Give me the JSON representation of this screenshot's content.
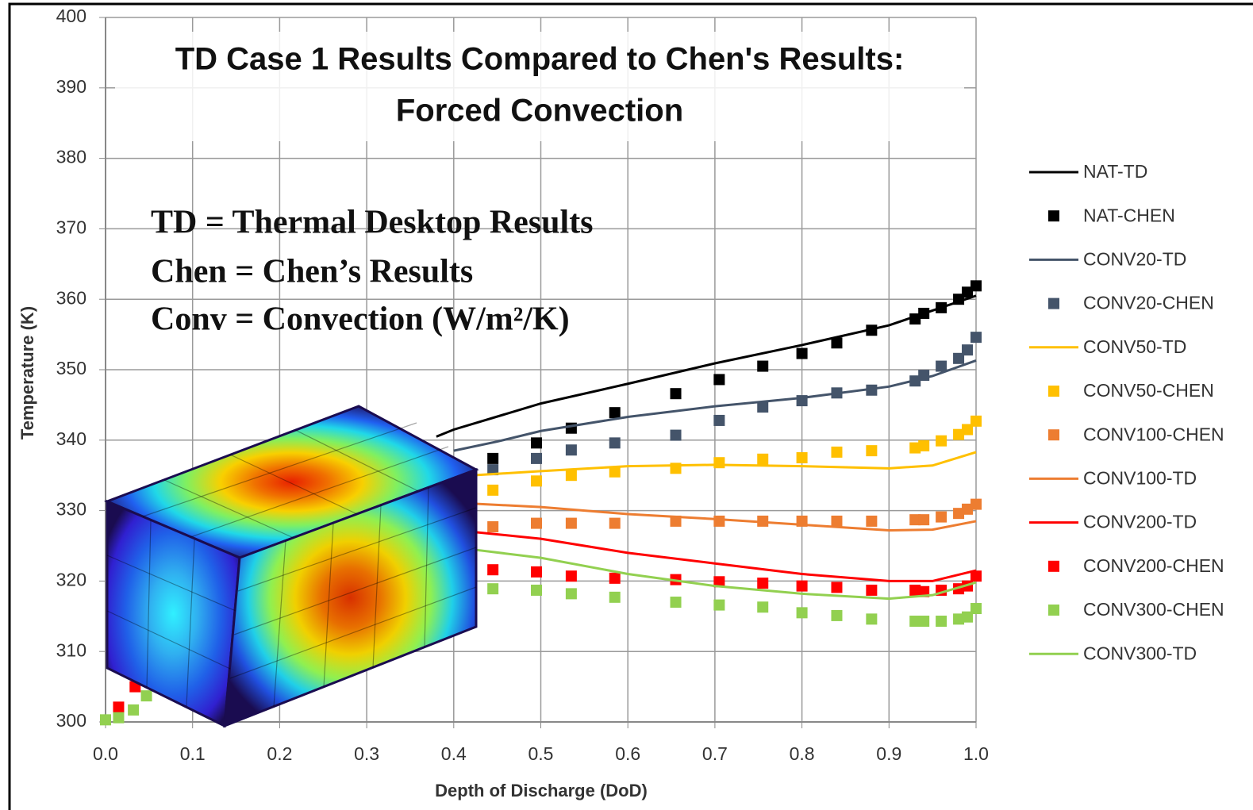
{
  "chart_data": {
    "type": "line",
    "title": [
      "TD Case 1 Results Compared to Chen's Results:",
      "Forced Convection"
    ],
    "annotations": [
      "TD = Thermal Desktop Results",
      "Chen = Chen’s Results",
      "Conv = Convection (W/m²/K)"
    ],
    "xlabel": "Depth of Discharge (DoD)",
    "ylabel": "Temperature (K)",
    "xlim": [
      0,
      1
    ],
    "ylim": [
      300,
      400
    ],
    "xticks": [
      {
        "value": 0,
        "label": "0.0"
      },
      0.1,
      0.2,
      0.3,
      0.4,
      0.5,
      0.6,
      0.7,
      0.8,
      0.9,
      {
        "value": 1,
        "label": "1.0"
      }
    ],
    "yticks": [
      300,
      310,
      320,
      330,
      340,
      350,
      360,
      370,
      380,
      390,
      400
    ],
    "grid": true,
    "legend": "right",
    "series": [
      {
        "name": "NAT-TD",
        "mode": "lines",
        "color": "#000000",
        "x": [
          0.38,
          0.4,
          0.5,
          0.6,
          0.7,
          0.8,
          0.9,
          0.95,
          1.0
        ],
        "values": [
          340.5,
          341.5,
          345.2,
          348.0,
          350.9,
          353.5,
          356.3,
          358.4,
          360.5
        ]
      },
      {
        "name": "NAT-CHEN",
        "mode": "markers",
        "color": "#000000",
        "x": [
          0.445,
          0.495,
          0.535,
          0.585,
          0.655,
          0.705,
          0.755,
          0.8,
          0.84,
          0.88,
          0.93,
          0.94,
          0.96,
          0.98,
          0.99,
          1.0
        ],
        "values": [
          337.4,
          339.6,
          341.7,
          343.9,
          346.6,
          348.6,
          350.5,
          352.3,
          353.8,
          355.6,
          357.2,
          358.0,
          358.8,
          360.0,
          361.0,
          361.9
        ]
      },
      {
        "name": "CONV20-TD",
        "mode": "lines",
        "color": "#44546a",
        "x": [
          0.4,
          0.45,
          0.5,
          0.6,
          0.7,
          0.8,
          0.9,
          0.95,
          1.0
        ],
        "values": [
          338.5,
          339.8,
          341.3,
          343.3,
          344.8,
          346.0,
          347.6,
          349.1,
          351.3
        ]
      },
      {
        "name": "CONV20-CHEN",
        "mode": "markers",
        "color": "#44546a",
        "x": [
          0.445,
          0.495,
          0.535,
          0.585,
          0.655,
          0.705,
          0.755,
          0.8,
          0.84,
          0.88,
          0.93,
          0.94,
          0.96,
          0.98,
          0.99,
          1.0
        ],
        "values": [
          335.8,
          337.4,
          338.6,
          339.6,
          340.7,
          342.8,
          344.7,
          345.6,
          346.7,
          347.1,
          348.4,
          349.2,
          350.5,
          351.6,
          352.8,
          354.6
        ]
      },
      {
        "name": "CONV50-TD",
        "mode": "lines",
        "color": "#ffc000",
        "x": [
          0.42,
          0.5,
          0.6,
          0.7,
          0.8,
          0.9,
          0.95,
          1.0
        ],
        "values": [
          335.0,
          335.6,
          336.3,
          336.5,
          336.3,
          336.0,
          336.4,
          338.3
        ]
      },
      {
        "name": "CONV50-CHEN",
        "mode": "markers",
        "color": "#ffc000",
        "x": [
          0.445,
          0.495,
          0.535,
          0.585,
          0.655,
          0.705,
          0.755,
          0.8,
          0.84,
          0.88,
          0.93,
          0.94,
          0.96,
          0.98,
          0.99,
          1.0
        ],
        "values": [
          332.9,
          334.2,
          335.0,
          335.5,
          336.0,
          336.8,
          337.3,
          337.5,
          338.3,
          338.5,
          338.9,
          339.2,
          339.9,
          340.8,
          341.5,
          342.7
        ]
      },
      {
        "name": "CONV100-CHEN",
        "mode": "markers",
        "color": "#ed7d31",
        "x": [
          0.445,
          0.495,
          0.535,
          0.585,
          0.655,
          0.705,
          0.755,
          0.8,
          0.84,
          0.88,
          0.93,
          0.94,
          0.96,
          0.98,
          0.99,
          1.0
        ],
        "values": [
          327.7,
          328.2,
          328.2,
          328.2,
          328.5,
          328.5,
          328.5,
          328.5,
          328.5,
          328.5,
          328.7,
          328.7,
          329.1,
          329.6,
          330.2,
          330.9
        ]
      },
      {
        "name": "CONV100-TD",
        "mode": "lines",
        "color": "#ed7d31",
        "x": [
          0.42,
          0.5,
          0.6,
          0.7,
          0.8,
          0.9,
          0.95,
          1.0
        ],
        "values": [
          331.0,
          330.5,
          329.5,
          328.8,
          328.0,
          327.2,
          327.3,
          328.5
        ]
      },
      {
        "name": "CONV200-TD",
        "mode": "lines",
        "color": "#ff0000",
        "x": [
          0.42,
          0.5,
          0.6,
          0.7,
          0.8,
          0.9,
          0.95,
          1.0
        ],
        "values": [
          327.0,
          326.0,
          324.0,
          322.5,
          321.0,
          320.0,
          320.0,
          321.5
        ]
      },
      {
        "name": "CONV200-CHEN",
        "mode": "markers",
        "color": "#ff0000",
        "x": [
          0.015,
          0.034,
          0.445,
          0.495,
          0.535,
          0.585,
          0.655,
          0.705,
          0.755,
          0.8,
          0.84,
          0.88,
          0.93,
          0.94,
          0.96,
          0.98,
          0.99,
          1.0
        ],
        "values": [
          302.1,
          305.0,
          321.6,
          321.3,
          320.7,
          320.4,
          320.2,
          319.9,
          319.7,
          319.3,
          319.1,
          318.7,
          318.7,
          318.5,
          318.7,
          318.9,
          319.3,
          320.7
        ]
      },
      {
        "name": "CONV300-CHEN",
        "mode": "markers",
        "color": "#92d050",
        "x": [
          0,
          0.015,
          0.032,
          0.047,
          0.445,
          0.495,
          0.535,
          0.585,
          0.655,
          0.705,
          0.755,
          0.8,
          0.84,
          0.88,
          0.93,
          0.94,
          0.96,
          0.98,
          0.99,
          1.0
        ],
        "values": [
          300.3,
          300.6,
          301.7,
          303.7,
          318.9,
          318.7,
          318.2,
          317.7,
          317.0,
          316.6,
          316.3,
          315.5,
          315.1,
          314.6,
          314.3,
          314.3,
          314.3,
          314.6,
          314.9,
          316.1
        ]
      },
      {
        "name": "CONV300-TD",
        "mode": "lines",
        "color": "#92d050",
        "x": [
          0.42,
          0.5,
          0.6,
          0.7,
          0.8,
          0.9,
          0.95,
          1.0
        ],
        "values": [
          324.5,
          323.3,
          321.0,
          319.3,
          318.2,
          317.5,
          318.0,
          319.8
        ]
      }
    ]
  }
}
